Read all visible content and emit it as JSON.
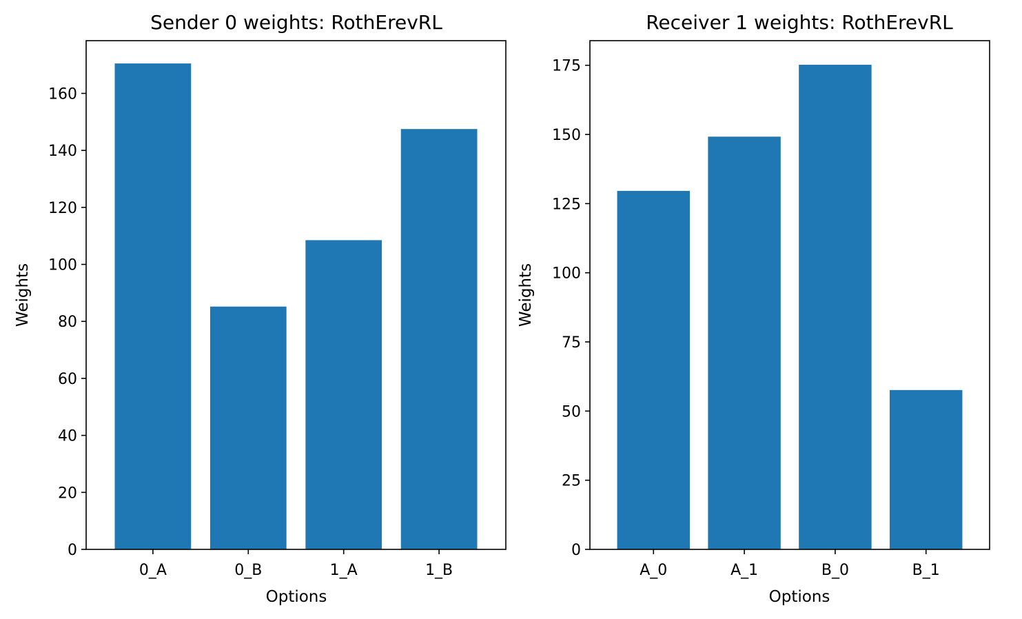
{
  "chart_data": [
    {
      "type": "bar",
      "title": "Sender 0 weights: RothErevRL",
      "xlabel": "Options",
      "ylabel": "Weights",
      "categories": [
        "0_A",
        "0_B",
        "1_A",
        "1_B"
      ],
      "values": [
        170.5,
        85.2,
        108.5,
        147.5
      ],
      "ylim": [
        0,
        178.5
      ],
      "yticks": [
        0,
        20,
        40,
        60,
        80,
        100,
        120,
        140,
        160
      ],
      "bar_color": "#1f77b4",
      "grid": false
    },
    {
      "type": "bar",
      "title": "Receiver 1 weights: RothErevRL",
      "xlabel": "Options",
      "ylabel": "Weights",
      "categories": [
        "A_0",
        "A_1",
        "B_0",
        "B_1"
      ],
      "values": [
        129.6,
        149.2,
        175.2,
        57.6
      ],
      "ylim": [
        0,
        183.9
      ],
      "yticks": [
        0,
        25,
        50,
        75,
        100,
        125,
        150,
        175
      ],
      "bar_color": "#1f77b4",
      "grid": false
    }
  ]
}
